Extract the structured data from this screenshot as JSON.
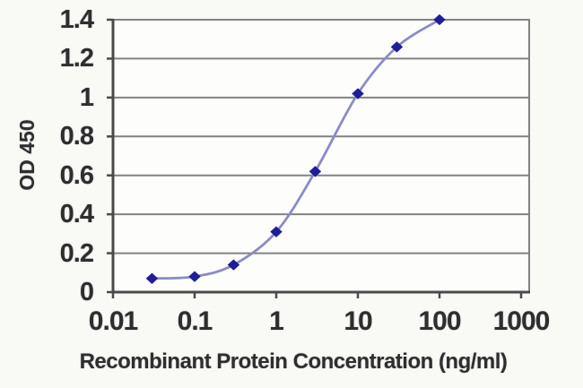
{
  "chart_data": {
    "type": "line",
    "title": "",
    "xlabel": "Recombinant Protein Concentration (ng/ml)",
    "ylabel": "OD 450",
    "x_scale": "log",
    "xlim": [
      0.01,
      1000
    ],
    "ylim": [
      0,
      1.4
    ],
    "x_tick_values": [
      0.01,
      0.1,
      1,
      10,
      100,
      1000
    ],
    "x_tick_labels": [
      "0.01",
      "0.1",
      "1",
      "10",
      "100",
      "1000"
    ],
    "y_tick_values": [
      0,
      0.2,
      0.4,
      0.6,
      0.8,
      1,
      1.2,
      1.4
    ],
    "y_tick_labels": [
      "0",
      "0.2",
      "0.4",
      "0.6",
      "0.8",
      "1",
      "1.2",
      "1.4"
    ],
    "grid": "horizontal",
    "legend": "none",
    "series": [
      {
        "x": [
          0.03,
          0.1,
          0.3,
          1,
          3,
          10,
          30,
          100
        ],
        "y": [
          0.07,
          0.08,
          0.14,
          0.31,
          0.62,
          1.02,
          1.26,
          1.4
        ],
        "marker": "diamond",
        "line_color": "#8b8bc7",
        "marker_color": "#1e1e96"
      }
    ]
  },
  "colors": {
    "background": "#f9f9f6",
    "plot_background": "#fdfdfc",
    "gridline": "#828282",
    "axis": "#4a4a4a",
    "text": "#2e2e2e"
  }
}
